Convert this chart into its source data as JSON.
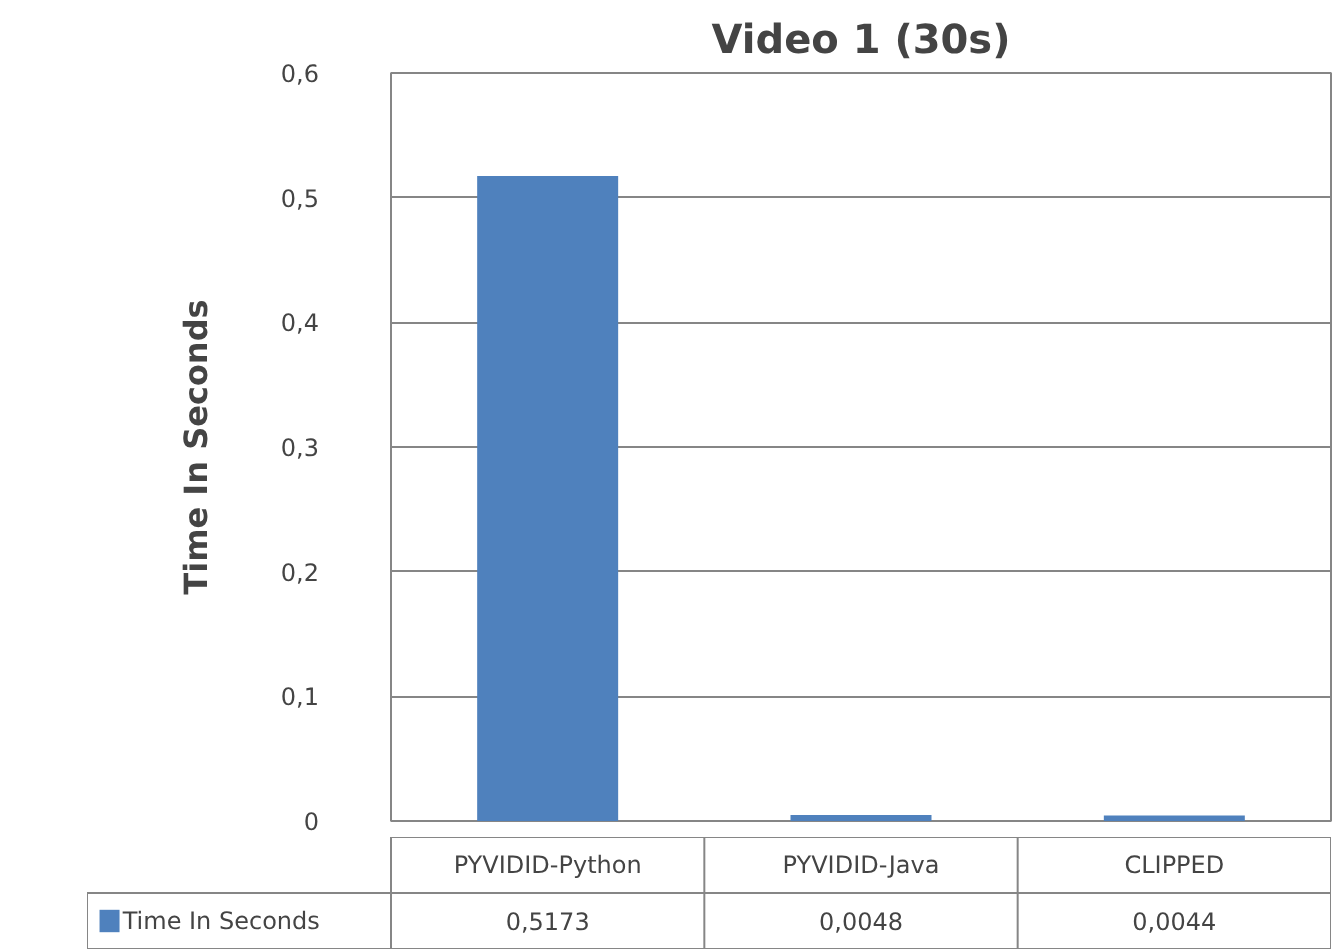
{
  "chart_data": {
    "type": "bar",
    "title": "Video 1 (30s)",
    "ylabel": "Time In Seconds",
    "categories": [
      "PYVIDID-Python",
      "PYVIDID-Java",
      "CLIPPED"
    ],
    "series": [
      {
        "name": "Time In Seconds",
        "color": "#4f81bd",
        "values": [
          0.5173,
          0.0048,
          0.0044
        ],
        "value_labels": [
          "0,5173",
          "0,0048",
          "0,0044"
        ]
      }
    ],
    "ylim": [
      0,
      0.6
    ],
    "yticks": [
      0,
      {
        "value": 0.1,
        "label": "0,1"
      },
      {
        "value": 0.2,
        "label": "0,2"
      },
      {
        "value": 0.3,
        "label": "0,3"
      },
      {
        "value": 0.4,
        "label": "0,4"
      },
      {
        "value": 0.5,
        "label": "0,5"
      },
      {
        "value": 0.6,
        "label": "0,6"
      }
    ],
    "grid": "y",
    "legend": "bottom"
  }
}
